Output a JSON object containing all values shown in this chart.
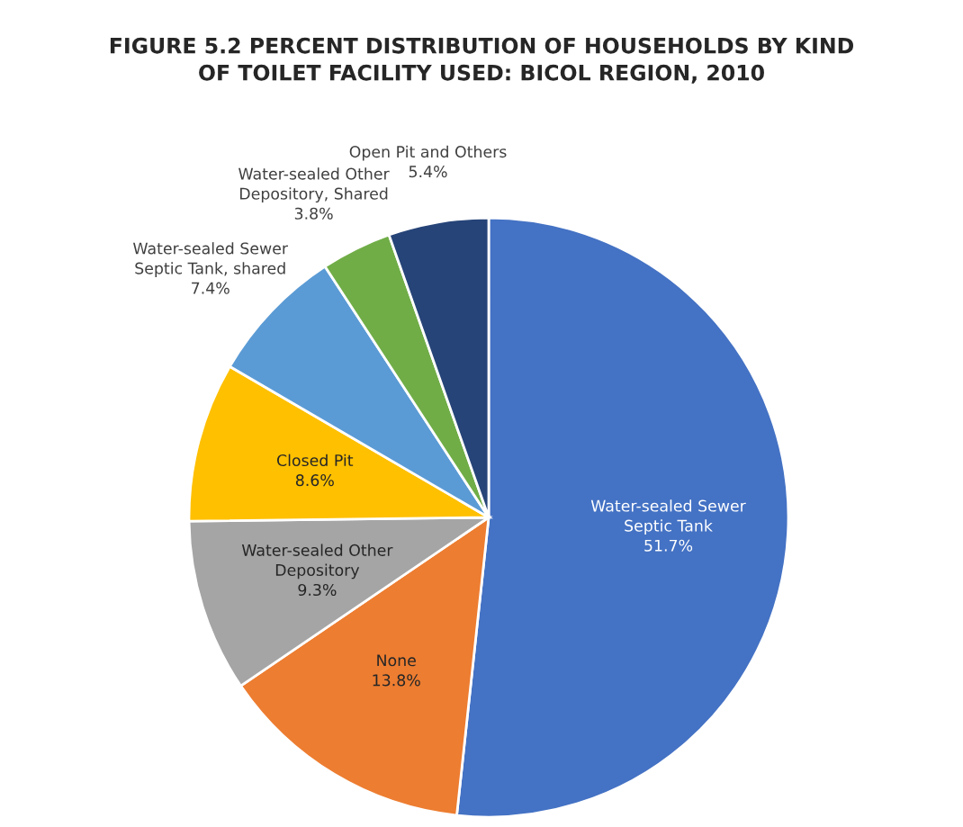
{
  "chart_data": {
    "type": "pie",
    "title": "FIGURE 5.2 PERCENT DISTRIBUTION OF HOUSEHOLDS BY KIND\nOF TOILET FACILITY USED: BICOL REGION, 2010",
    "categories": [
      "Water-sealed Sewer\nSeptic Tank",
      "None",
      "Water-sealed Other\nDepository",
      "Closed Pit",
      "Water-sealed Sewer\nSeptic Tank, shared",
      "Water-sealed Other\nDepository, Shared",
      "Open Pit and Others"
    ],
    "values": [
      51.7,
      13.8,
      9.3,
      8.6,
      7.4,
      3.8,
      5.4
    ],
    "colors": [
      "#4472c4",
      "#ed7d31",
      "#a5a5a5",
      "#ffc000",
      "#5b9bd5",
      "#70ad47",
      "#264478"
    ],
    "value_labels": [
      "51.7%",
      "13.8%",
      "9.3%",
      "8.6%",
      "7.4%",
      "3.8%",
      "5.4%"
    ]
  }
}
